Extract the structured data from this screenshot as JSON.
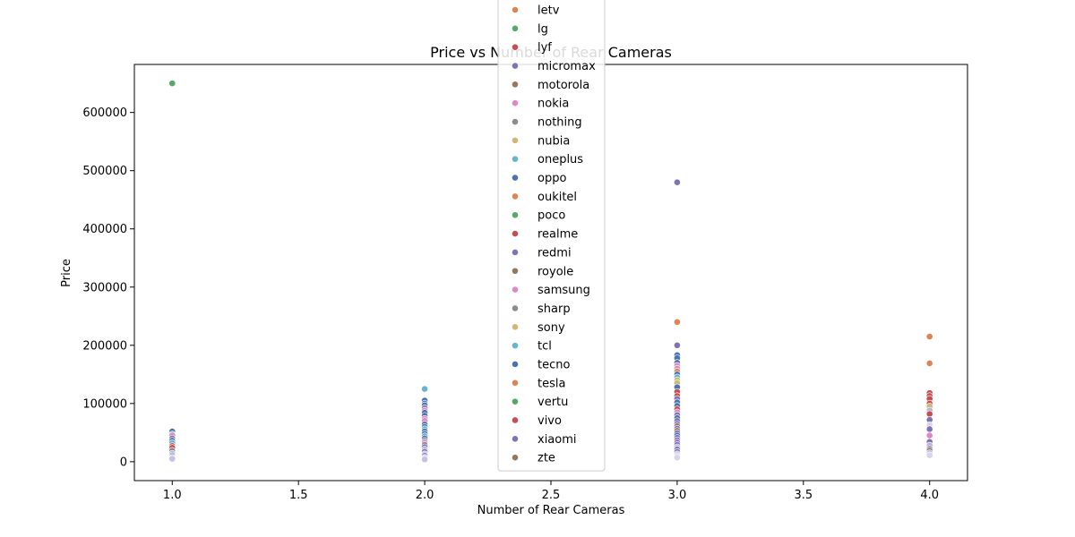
{
  "chart_data": {
    "type": "scatter",
    "title": "Price vs Number of Rear Cameras",
    "xlabel": "Number of Rear Cameras",
    "ylabel": "Price",
    "xlim": [
      0.85,
      4.15
    ],
    "ylim": [
      -32500,
      682500
    ],
    "xticks": [
      "1.0",
      "1.5",
      "2.0",
      "2.5",
      "3.0",
      "3.5",
      "4.0"
    ],
    "yticks": [
      "0",
      "100000",
      "200000",
      "300000",
      "400000",
      "500000",
      "600000"
    ],
    "grid": false,
    "legend_position": "upper center",
    "legend_entries": [
      {
        "name": "letv",
        "color": "#dd8452"
      },
      {
        "name": "lg",
        "color": "#55a868"
      },
      {
        "name": "lyf",
        "color": "#c44e52"
      },
      {
        "name": "micromax",
        "color": "#8172b3"
      },
      {
        "name": "motorola",
        "color": "#937860"
      },
      {
        "name": "nokia",
        "color": "#da8bc3"
      },
      {
        "name": "nothing",
        "color": "#8c8c8c"
      },
      {
        "name": "nubia",
        "color": "#ccb974"
      },
      {
        "name": "oneplus",
        "color": "#64b5cd"
      },
      {
        "name": "oppo",
        "color": "#4c72b0"
      },
      {
        "name": "oukitel",
        "color": "#dd8452"
      },
      {
        "name": "poco",
        "color": "#55a868"
      },
      {
        "name": "realme",
        "color": "#c44e52"
      },
      {
        "name": "redmi",
        "color": "#8172b3"
      },
      {
        "name": "royole",
        "color": "#937860"
      },
      {
        "name": "samsung",
        "color": "#da8bc3"
      },
      {
        "name": "sharp",
        "color": "#8c8c8c"
      },
      {
        "name": "sony",
        "color": "#ccb974"
      },
      {
        "name": "tcl",
        "color": "#64b5cd"
      },
      {
        "name": "tecno",
        "color": "#4c72b0"
      },
      {
        "name": "tesla",
        "color": "#dd8452"
      },
      {
        "name": "vertu",
        "color": "#55a868"
      },
      {
        "name": "vivo",
        "color": "#c44e52"
      },
      {
        "name": "xiaomi",
        "color": "#8172b3"
      },
      {
        "name": "zte",
        "color": "#937860"
      }
    ],
    "points": [
      {
        "x": 1,
        "y": 650000,
        "color": "#55a868"
      },
      {
        "x": 1,
        "y": 52000,
        "color": "#4c72b0"
      },
      {
        "x": 1,
        "y": 47000,
        "color": "#64b5cd"
      },
      {
        "x": 1,
        "y": 45000,
        "color": "#da8bc3"
      },
      {
        "x": 1,
        "y": 40000,
        "color": "#8172b3"
      },
      {
        "x": 1,
        "y": 36000,
        "color": "#4c72b0"
      },
      {
        "x": 1,
        "y": 32000,
        "color": "#64b5cd"
      },
      {
        "x": 1,
        "y": 27000,
        "color": "#c44e52"
      },
      {
        "x": 1,
        "y": 24000,
        "color": "#c44e52"
      },
      {
        "x": 1,
        "y": 19000,
        "color": "#8c8c8c"
      },
      {
        "x": 1,
        "y": 14000,
        "color": "#b8b3d8"
      },
      {
        "x": 1,
        "y": 11000,
        "color": "#8172b3"
      },
      {
        "x": 1,
        "y": 9000,
        "color": "#4c72b0"
      },
      {
        "x": 1,
        "y": 7000,
        "color": "#d8d4ec"
      },
      {
        "x": 1,
        "y": 5000,
        "color": "#c7c2e2"
      },
      {
        "x": 2,
        "y": 125000,
        "color": "#64b5cd"
      },
      {
        "x": 2,
        "y": 105000,
        "color": "#4c72b0"
      },
      {
        "x": 2,
        "y": 100000,
        "color": "#4c72b0"
      },
      {
        "x": 2,
        "y": 97000,
        "color": "#4c72b0"
      },
      {
        "x": 2,
        "y": 92000,
        "color": "#8172b3"
      },
      {
        "x": 2,
        "y": 88000,
        "color": "#da8bc3"
      },
      {
        "x": 2,
        "y": 84000,
        "color": "#4c72b0"
      },
      {
        "x": 2,
        "y": 79000,
        "color": "#4c72b0"
      },
      {
        "x": 2,
        "y": 74000,
        "color": "#da8bc3"
      },
      {
        "x": 2,
        "y": 70000,
        "color": "#da8bc3"
      },
      {
        "x": 2,
        "y": 64000,
        "color": "#4c72b0"
      },
      {
        "x": 2,
        "y": 60000,
        "color": "#4c72b0"
      },
      {
        "x": 2,
        "y": 56000,
        "color": "#64b5cd"
      },
      {
        "x": 2,
        "y": 52000,
        "color": "#4c72b0"
      },
      {
        "x": 2,
        "y": 48000,
        "color": "#4c72b0"
      },
      {
        "x": 2,
        "y": 44000,
        "color": "#64b5cd"
      },
      {
        "x": 2,
        "y": 40000,
        "color": "#4c72b0"
      },
      {
        "x": 2,
        "y": 36000,
        "color": "#8172b3"
      },
      {
        "x": 2,
        "y": 33000,
        "color": "#da8bc3"
      },
      {
        "x": 2,
        "y": 29000,
        "color": "#8c8c8c"
      },
      {
        "x": 2,
        "y": 25000,
        "color": "#8172b3"
      },
      {
        "x": 2,
        "y": 21000,
        "color": "#b8b3d8"
      },
      {
        "x": 2,
        "y": 17000,
        "color": "#8172b3"
      },
      {
        "x": 2,
        "y": 13000,
        "color": "#c7c2e2"
      },
      {
        "x": 2,
        "y": 10000,
        "color": "#8172b3"
      },
      {
        "x": 2,
        "y": 7000,
        "color": "#d8d4ec"
      },
      {
        "x": 2,
        "y": 4000,
        "color": "#c7c2e2"
      },
      {
        "x": 3,
        "y": 480000,
        "color": "#8172b3"
      },
      {
        "x": 3,
        "y": 240000,
        "color": "#dd8452"
      },
      {
        "x": 3,
        "y": 200000,
        "color": "#8172b3"
      },
      {
        "x": 3,
        "y": 183000,
        "color": "#4c72b0"
      },
      {
        "x": 3,
        "y": 178000,
        "color": "#4c72b0"
      },
      {
        "x": 3,
        "y": 170000,
        "color": "#4c72b0"
      },
      {
        "x": 3,
        "y": 165000,
        "color": "#da8bc3"
      },
      {
        "x": 3,
        "y": 160000,
        "color": "#da8bc3"
      },
      {
        "x": 3,
        "y": 155000,
        "color": "#dd8452"
      },
      {
        "x": 3,
        "y": 150000,
        "color": "#4c72b0"
      },
      {
        "x": 3,
        "y": 145000,
        "color": "#64b5cd"
      },
      {
        "x": 3,
        "y": 140000,
        "color": "#ccb974"
      },
      {
        "x": 3,
        "y": 135000,
        "color": "#ccb974"
      },
      {
        "x": 3,
        "y": 128000,
        "color": "#4c72b0"
      },
      {
        "x": 3,
        "y": 120000,
        "color": "#c44e52"
      },
      {
        "x": 3,
        "y": 113000,
        "color": "#c44e52"
      },
      {
        "x": 3,
        "y": 108000,
        "color": "#8172b3"
      },
      {
        "x": 3,
        "y": 102000,
        "color": "#4c72b0"
      },
      {
        "x": 3,
        "y": 96000,
        "color": "#4c72b0"
      },
      {
        "x": 3,
        "y": 90000,
        "color": "#c44e52"
      },
      {
        "x": 3,
        "y": 85000,
        "color": "#da8bc3"
      },
      {
        "x": 3,
        "y": 80000,
        "color": "#8172b3"
      },
      {
        "x": 3,
        "y": 75000,
        "color": "#4c72b0"
      },
      {
        "x": 3,
        "y": 70000,
        "color": "#8172b3"
      },
      {
        "x": 3,
        "y": 65000,
        "color": "#8172b3"
      },
      {
        "x": 3,
        "y": 61000,
        "color": "#937860"
      },
      {
        "x": 3,
        "y": 57000,
        "color": "#8172b3"
      },
      {
        "x": 3,
        "y": 53000,
        "color": "#937860"
      },
      {
        "x": 3,
        "y": 49000,
        "color": "#8172b3"
      },
      {
        "x": 3,
        "y": 45000,
        "color": "#4c72b0"
      },
      {
        "x": 3,
        "y": 41000,
        "color": "#8172b3"
      },
      {
        "x": 3,
        "y": 37000,
        "color": "#8172b3"
      },
      {
        "x": 3,
        "y": 33000,
        "color": "#8172b3"
      },
      {
        "x": 3,
        "y": 29000,
        "color": "#8172b3"
      },
      {
        "x": 3,
        "y": 25000,
        "color": "#b8b3d8"
      },
      {
        "x": 3,
        "y": 21000,
        "color": "#8172b3"
      },
      {
        "x": 3,
        "y": 17000,
        "color": "#8172b3"
      },
      {
        "x": 3,
        "y": 13000,
        "color": "#c7c2e2"
      },
      {
        "x": 3,
        "y": 10000,
        "color": "#d8d4ec"
      },
      {
        "x": 3,
        "y": 7000,
        "color": "#d8d4ec"
      },
      {
        "x": 4,
        "y": 215000,
        "color": "#dd8452"
      },
      {
        "x": 4,
        "y": 169000,
        "color": "#dd8452"
      },
      {
        "x": 4,
        "y": 118000,
        "color": "#c44e52"
      },
      {
        "x": 4,
        "y": 113000,
        "color": "#c44e52"
      },
      {
        "x": 4,
        "y": 108000,
        "color": "#c44e52"
      },
      {
        "x": 4,
        "y": 100000,
        "color": "#c44e52"
      },
      {
        "x": 4,
        "y": 95000,
        "color": "#ccb974"
      },
      {
        "x": 4,
        "y": 88000,
        "color": "#b8b3d8"
      },
      {
        "x": 4,
        "y": 82000,
        "color": "#c44e52"
      },
      {
        "x": 4,
        "y": 72000,
        "color": "#8172b3"
      },
      {
        "x": 4,
        "y": 63000,
        "color": "#d8d4ec"
      },
      {
        "x": 4,
        "y": 56000,
        "color": "#8172b3"
      },
      {
        "x": 4,
        "y": 45000,
        "color": "#da8bc3"
      },
      {
        "x": 4,
        "y": 34000,
        "color": "#8172b3"
      },
      {
        "x": 4,
        "y": 28000,
        "color": "#b8b3d8"
      },
      {
        "x": 4,
        "y": 22000,
        "color": "#8172b3"
      },
      {
        "x": 4,
        "y": 19000,
        "color": "#937860"
      },
      {
        "x": 4,
        "y": 15000,
        "color": "#c7c2e2"
      },
      {
        "x": 4,
        "y": 11000,
        "color": "#d8d4ec"
      }
    ]
  }
}
